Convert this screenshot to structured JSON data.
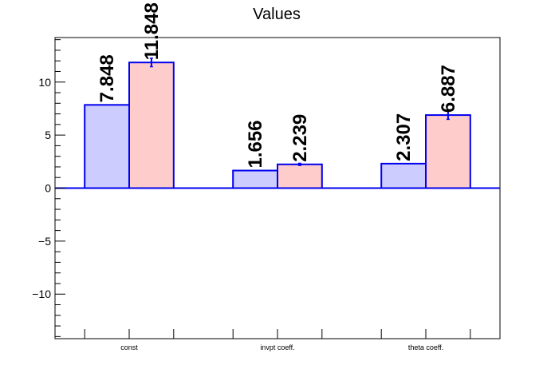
{
  "chart_data": {
    "type": "bar",
    "title": "Values",
    "categories": [
      "const",
      "invpt coeff.",
      "theta coeff."
    ],
    "series": [
      {
        "values": [
          7.848,
          1.656,
          2.307
        ],
        "errors": [
          0,
          0,
          0
        ],
        "color": "#ccccff"
      },
      {
        "values": [
          11.848,
          2.239,
          6.887
        ],
        "errors": [
          0.4,
          0.1,
          0.4
        ],
        "color": "#ffcccc"
      }
    ],
    "value_labels": [
      [
        "7.848",
        "1.656",
        "2.307"
      ],
      [
        "11.848",
        "2.239",
        "6.887"
      ]
    ],
    "ylim": [
      -14.2,
      14.2
    ],
    "yticks": [
      -10,
      -5,
      0,
      5,
      10
    ],
    "ytick_labels": [
      "−10",
      "−5",
      "0",
      "5",
      "10"
    ],
    "xlabel": "",
    "ylabel": "",
    "edge_color": "#0000ee",
    "grid": false,
    "legend": "none"
  }
}
